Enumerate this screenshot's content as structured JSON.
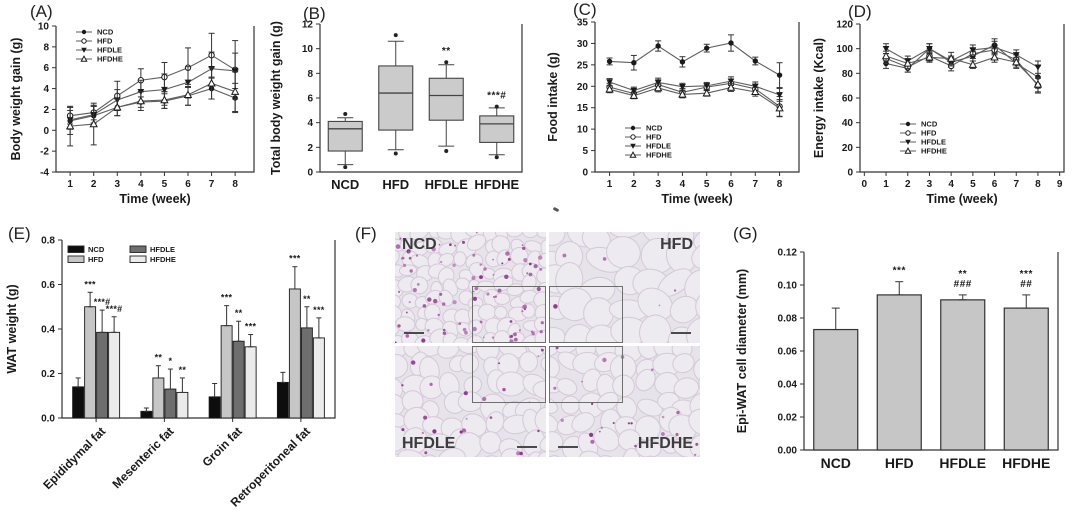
{
  "chart_data": [
    {
      "id": "A",
      "panel_label": "(A)",
      "type": "line",
      "ylabel": "Body weight gain (g)",
      "xlabel": "Time (week)",
      "ylim": [
        -4,
        10
      ],
      "yticks": [
        -4,
        -2,
        0,
        2,
        4,
        6,
        8,
        10
      ],
      "yticklabels": [
        "-4",
        "-2",
        "0",
        "2",
        "4",
        "6",
        "8",
        "10"
      ],
      "xlim": [
        0.4,
        8.8
      ],
      "xticks": [
        1,
        2,
        3,
        4,
        5,
        6,
        7,
        8
      ],
      "xticklabels": [
        "1",
        "2",
        "3",
        "4",
        "5",
        "6",
        "7",
        "8"
      ],
      "legend_position": "top-left",
      "series": [
        {
          "name": "NCD",
          "marker": "circle-filled",
          "values": [
            0.9,
            1.4,
            2.2,
            2.7,
            2.8,
            3.3,
            4.0,
            3.1
          ],
          "errors": [
            1.3,
            0.9,
            0.8,
            0.5,
            0.7,
            0.9,
            1.0,
            1.4
          ]
        },
        {
          "name": "HFD",
          "marker": "circle-open",
          "values": [
            1.4,
            1.7,
            3.3,
            4.8,
            5.1,
            6.0,
            7.2,
            5.8
          ],
          "errors": [
            0.8,
            0.7,
            1.4,
            1.1,
            1.4,
            1.9,
            2.1,
            2.8
          ]
        },
        {
          "name": "HFDLE",
          "marker": "triangle-filled",
          "values": [
            1.0,
            1.5,
            2.9,
            3.7,
            3.9,
            4.6,
            5.9,
            5.7
          ],
          "errors": [
            0.9,
            0.8,
            1.0,
            1.1,
            1.5,
            1.5,
            1.6,
            1.7
          ]
        },
        {
          "name": "HFDHE",
          "marker": "triangle-open",
          "values": [
            0.4,
            0.6,
            2.2,
            2.8,
            2.9,
            3.4,
            4.5,
            3.7
          ],
          "errors": [
            1.9,
            2.0,
            0.8,
            0.9,
            0.8,
            1.0,
            1.5,
            1.9
          ]
        }
      ]
    },
    {
      "id": "B",
      "panel_label": "(B)",
      "type": "box",
      "ylabel": "Total body weight gain (g)",
      "ylim": [
        0,
        12
      ],
      "yticks": [
        0,
        2,
        4,
        6,
        8,
        10,
        12
      ],
      "yticklabels": [
        "0",
        "2",
        "4",
        "6",
        "8",
        "10",
        "12"
      ],
      "categories": [
        "NCD",
        "HFD",
        "HFDLE",
        "HFDHE"
      ],
      "box_fill": "#cbcbcb",
      "boxes": [
        {
          "q1": 1.7,
          "median": 3.5,
          "q3": 4.1,
          "lo": 0.6,
          "hi": 4.4,
          "outliers": [
            0.4,
            4.7
          ],
          "annotation": ""
        },
        {
          "q1": 3.4,
          "median": 6.4,
          "q3": 8.6,
          "lo": 1.8,
          "hi": 10.6,
          "outliers": [
            1.5,
            11.1
          ],
          "annotation": ""
        },
        {
          "q1": 4.2,
          "median": 6.2,
          "q3": 7.6,
          "lo": 2.1,
          "hi": 8.7,
          "outliers": [
            1.7,
            8.9
          ],
          "annotation": "**"
        },
        {
          "q1": 2.4,
          "median": 3.9,
          "q3": 4.55,
          "lo": 1.4,
          "hi": 5.2,
          "outliers": [
            1.2,
            5.3
          ],
          "annotation": "***#"
        }
      ]
    },
    {
      "id": "C",
      "panel_label": "(C)",
      "type": "line",
      "ylabel": "Food intake (g)",
      "xlabel": "Time (week)",
      "ylim": [
        0,
        35
      ],
      "yticks": [
        0,
        5,
        10,
        15,
        20,
        25,
        30,
        35
      ],
      "yticklabels": [
        "0",
        "5",
        "10",
        "15",
        "20",
        "25",
        "30",
        "35"
      ],
      "xlim": [
        0.4,
        8.8
      ],
      "xticks": [
        1,
        2,
        3,
        4,
        5,
        6,
        7,
        8
      ],
      "xticklabels": [
        "1",
        "2",
        "3",
        "4",
        "5",
        "6",
        "7",
        "8"
      ],
      "legend_position": "bottom-left",
      "series": [
        {
          "name": "NCD",
          "marker": "circle-filled",
          "values": [
            25.8,
            25.5,
            29.4,
            25.7,
            28.9,
            30.1,
            25.9,
            22.6
          ],
          "errors": [
            0.8,
            1.7,
            1.2,
            1.2,
            0.9,
            1.9,
            0.9,
            2.9
          ]
        },
        {
          "name": "HFD",
          "marker": "circle-open",
          "values": [
            19.8,
            18.3,
            20.4,
            18.6,
            19.8,
            20.7,
            19.4,
            15.3
          ],
          "errors": [
            0.9,
            0.9,
            1.1,
            0.9,
            0.8,
            1.0,
            1.1,
            2.3
          ]
        },
        {
          "name": "HFDLE",
          "marker": "triangle-filled",
          "values": [
            21.0,
            19.0,
            20.9,
            19.9,
            20.1,
            21.2,
            20.0,
            18.0
          ],
          "errors": [
            0.8,
            0.8,
            1.0,
            0.8,
            0.8,
            1.0,
            1.0,
            1.5
          ]
        },
        {
          "name": "HFDHE",
          "marker": "triangle-open",
          "values": [
            19.3,
            17.8,
            19.6,
            18.1,
            18.4,
            19.7,
            18.7,
            14.9
          ],
          "errors": [
            0.8,
            0.7,
            0.9,
            0.8,
            0.7,
            0.9,
            1.0,
            2.0
          ]
        }
      ]
    },
    {
      "id": "D",
      "panel_label": "(D)",
      "type": "line",
      "ylabel": "Energy intake (Kcal)",
      "xlabel": "Time (week)",
      "ylim": [
        0,
        120
      ],
      "yticks": [
        0,
        20,
        40,
        60,
        80,
        100,
        120
      ],
      "yticklabels": [
        "0",
        "20",
        "40",
        "60",
        "80",
        "100",
        "120"
      ],
      "xlim": [
        -0.2,
        9.2
      ],
      "xticks": [
        0,
        1,
        2,
        3,
        4,
        5,
        6,
        7,
        8,
        9
      ],
      "xticklabels": [
        "0",
        "1",
        "2",
        "3",
        "4",
        "5",
        "6",
        "7",
        "8",
        "9"
      ],
      "legend_position": "mid-left",
      "series": [
        {
          "name": "NCD",
          "marker": "circle-filled",
          "values": [
            88,
            84,
            100,
            89,
            94,
            103,
            88,
            77
          ],
          "errors": [
            4,
            3,
            4,
            4,
            4,
            5,
            4,
            9
          ],
          "x": [
            1,
            2,
            3,
            4,
            5,
            6,
            7,
            8
          ]
        },
        {
          "name": "HFD",
          "marker": "circle-open",
          "values": [
            92,
            85,
            94,
            86,
            96,
            99,
            91,
            70
          ],
          "errors": [
            4,
            4,
            4,
            4,
            4,
            4,
            4,
            6
          ],
          "x": [
            1,
            2,
            3,
            4,
            5,
            6,
            7,
            8
          ]
        },
        {
          "name": "HFDLE",
          "marker": "triangle-filled",
          "values": [
            100,
            90,
            100,
            90,
            99,
            101,
            95,
            85
          ],
          "errors": [
            4,
            4,
            4,
            4,
            4,
            5,
            4,
            5
          ],
          "x": [
            1,
            2,
            3,
            4,
            5,
            6,
            7,
            8
          ]
        },
        {
          "name": "HFDHE",
          "marker": "triangle-open",
          "values": [
            94,
            88,
            93,
            92,
            87,
            93,
            89,
            71
          ],
          "errors": [
            4,
            4,
            4,
            5,
            3,
            4,
            4,
            6
          ],
          "x": [
            1,
            2,
            3,
            4,
            5,
            6,
            7,
            8
          ]
        }
      ]
    },
    {
      "id": "E",
      "panel_label": "(E)",
      "type": "grouped-bar",
      "ylabel": "WAT weight (g)",
      "ylim": [
        0,
        0.8
      ],
      "yticks": [
        0,
        0.2,
        0.4,
        0.6,
        0.8
      ],
      "yticklabels": [
        "0.0",
        "0.2",
        "0.4",
        "0.6",
        "0.8"
      ],
      "categories": [
        "Epididymal fat",
        "Mesenteric fat",
        "Groin fat",
        "Retroperitoneal fat"
      ],
      "legend_position": "top-left",
      "series": [
        {
          "name": "NCD",
          "fill": "#0d0d0d",
          "values": [
            0.14,
            0.03,
            0.095,
            0.16
          ],
          "errors": [
            0.04,
            0.015,
            0.06,
            0.045
          ],
          "annotations": [
            "",
            "",
            "",
            ""
          ]
        },
        {
          "name": "HFD",
          "fill": "#c6c6c6",
          "values": [
            0.5,
            0.18,
            0.415,
            0.58
          ],
          "errors": [
            0.065,
            0.055,
            0.09,
            0.1
          ],
          "annotations": [
            "***",
            "**",
            "***",
            "***"
          ]
        },
        {
          "name": "HFDLE",
          "fill": "#6e6e6e",
          "values": [
            0.385,
            0.13,
            0.345,
            0.405
          ],
          "errors": [
            0.1,
            0.09,
            0.09,
            0.095
          ],
          "annotations": [
            "***#",
            "*",
            "**",
            "**"
          ]
        },
        {
          "name": "HFDHE",
          "fill": "#ebebeb",
          "values": [
            0.385,
            0.115,
            0.32,
            0.36
          ],
          "errors": [
            0.07,
            0.065,
            0.055,
            0.09
          ],
          "annotations": [
            "***#",
            "**",
            "***",
            "***"
          ]
        }
      ]
    },
    {
      "id": "G",
      "panel_label": "(G)",
      "type": "bar",
      "ylabel": "Epi-WAT cell diameter (mm)",
      "ylim": [
        0,
        0.12
      ],
      "yticks": [
        0,
        0.02,
        0.04,
        0.06,
        0.08,
        0.1,
        0.12
      ],
      "yticklabels": [
        "0.00",
        "0.02",
        "0.04",
        "0.06",
        "0.08",
        "0.10",
        "0.12"
      ],
      "categories": [
        "NCD",
        "HFD",
        "HFDLE",
        "HFDHE"
      ],
      "bar_fill": "#c6c6c6",
      "values": [
        0.073,
        0.094,
        0.091,
        0.086
      ],
      "errors": [
        0.013,
        0.008,
        0.003,
        0.008
      ],
      "annotations": [
        [],
        [
          "***"
        ],
        [
          "**",
          "###"
        ],
        [
          "***",
          "##"
        ]
      ]
    }
  ],
  "histology": {
    "panel_label": "(F)",
    "colors": {
      "background": "#e7e3ea",
      "cell_fill": "#edeaf0",
      "cell_stroke": "#d5c8d8",
      "nucleus": "#b05fae",
      "nucleus_dark": "#8c2f86"
    },
    "tiles": [
      {
        "label": "NCD",
        "label_corner": "top-left",
        "cell_size": "small",
        "inset_corner": "bottom-right",
        "scalebar_corner": "bottom-left"
      },
      {
        "label": "HFD",
        "label_corner": "top-right",
        "cell_size": "large",
        "inset_corner": "bottom-left",
        "scalebar_corner": "bottom-right"
      },
      {
        "label": "HFDLE",
        "label_corner": "bottom-left",
        "cell_size": "medium",
        "inset_corner": "top-right",
        "scalebar_corner": "bottom-right"
      },
      {
        "label": "HFDHE",
        "label_corner": "bottom-right",
        "cell_size": "medium",
        "inset_corner": "top-left",
        "scalebar_corner": "bottom-left"
      }
    ]
  }
}
